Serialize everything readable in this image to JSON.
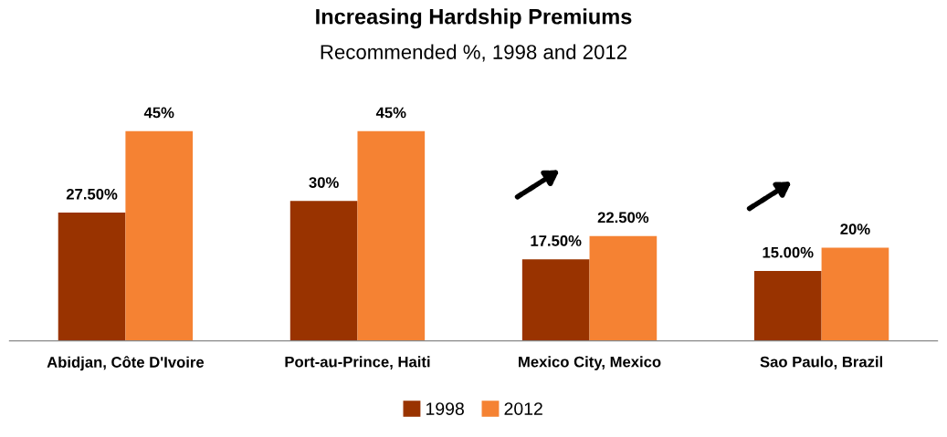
{
  "chart_data": {
    "type": "bar",
    "title": "Increasing Hardship Premiums",
    "subtitle": "Recommended %, 1998 and 2012",
    "categories": [
      "Abidjan, Côte D'Ivoire",
      "Port-au-Prince, Haiti",
      "Mexico City, Mexico",
      "Sao Paulo, Brazil"
    ],
    "series": [
      {
        "name": "1998",
        "color": "#993300",
        "values": [
          27.5,
          30,
          17.5,
          15
        ],
        "value_labels": [
          "27.50%",
          "30%",
          "17.50%",
          "15.00%"
        ]
      },
      {
        "name": "2012",
        "color": "#f58233",
        "values": [
          45,
          45,
          22.5,
          20
        ],
        "value_labels": [
          "45%",
          "45%",
          "22.50%",
          "20%"
        ]
      }
    ],
    "legend": "bottom",
    "grid": false
  }
}
